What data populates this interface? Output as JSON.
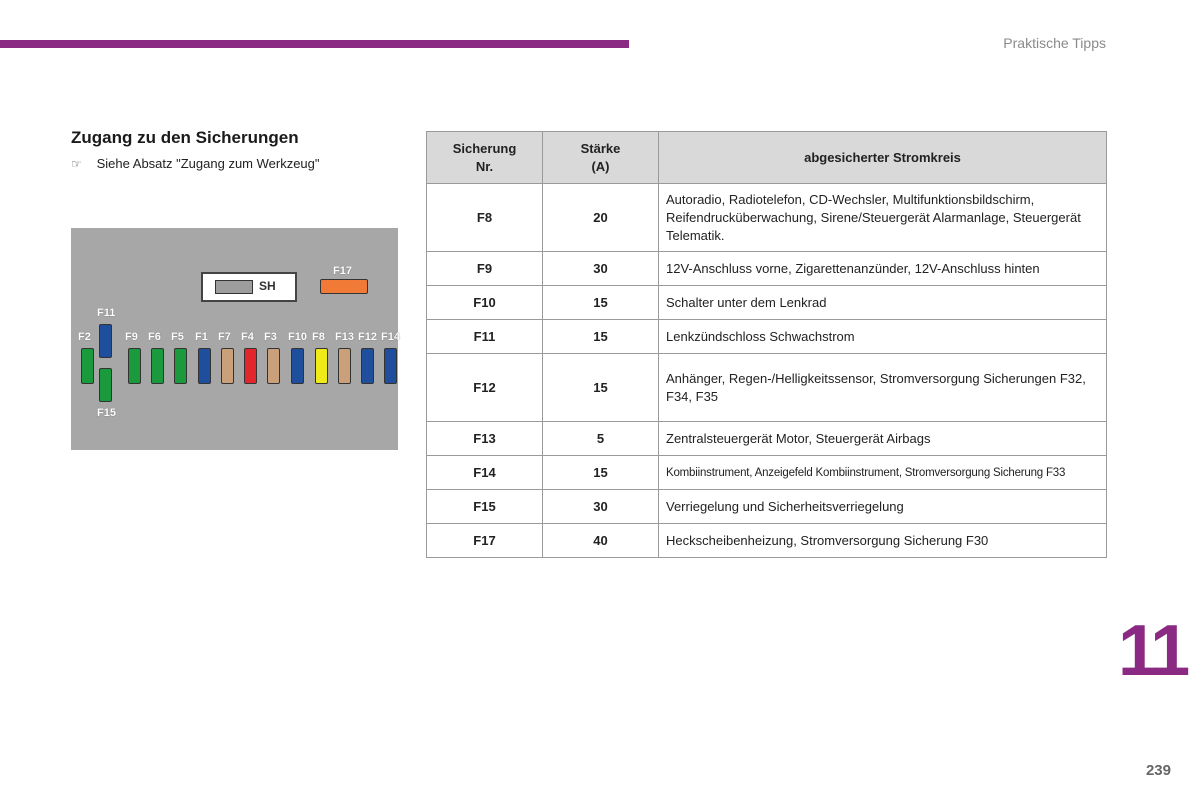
{
  "header": {
    "section": "Praktische Tipps"
  },
  "access": {
    "title": "Zugang zu den Sicherungen",
    "note_icon": "pointing-hand-icon",
    "note": "Siehe Absatz \"Zugang zum Werkzeug\""
  },
  "diagram": {
    "sh_label": "SH",
    "labels": {
      "F17": "F17",
      "F11": "F11",
      "F15": "F15",
      "row": [
        "F2",
        "F9",
        "F6",
        "F5",
        "F1",
        "F7",
        "F4",
        "F3",
        "F10",
        "F8",
        "F13",
        "F12",
        "F14"
      ]
    },
    "fuse_colors": {
      "F2": "#1a9a3c",
      "F11": "#1f4e9c",
      "F15": "#1a9a3c",
      "F9": "#1a9a3c",
      "F6": "#1a9a3c",
      "F5": "#1a9a3c",
      "F1": "#1f4e9c",
      "F7": "#c9a079",
      "F4": "#e3262b",
      "F3": "#c9a079",
      "F10": "#1f4e9c",
      "F8": "#f0ea18",
      "F13": "#c9a079",
      "F12": "#1f4e9c",
      "F14": "#1f4e9c",
      "F17": "#f07a36"
    }
  },
  "table": {
    "headers": {
      "fuse_line1": "Sicherung",
      "fuse_line2": "Nr.",
      "amp_line1": "Stärke",
      "amp_line2": "(A)",
      "circuit": "abgesicherter Stromkreis"
    },
    "rows": [
      {
        "fuse": "F8",
        "amp": "20",
        "desc": "Autoradio, Radiotelefon, CD-Wechsler, Multifunktionsbildschirm, Reifendrucküberwachung, Sirene/Steuergerät Alarmanlage, Steuergerät Telematik."
      },
      {
        "fuse": "F9",
        "amp": "30",
        "desc": "12V-Anschluss vorne, Zigarettenanzünder, 12V-Anschluss hinten"
      },
      {
        "fuse": "F10",
        "amp": "15",
        "desc": "Schalter unter dem Lenkrad"
      },
      {
        "fuse": "F11",
        "amp": "15",
        "desc": "Lenkzündschloss Schwachstrom"
      },
      {
        "fuse": "F12",
        "amp": "15",
        "desc": "Anhänger, Regen-/Helligkeitssensor, Stromversorgung Sicherungen F32, F34, F35"
      },
      {
        "fuse": "F13",
        "amp": "5",
        "desc": "Zentralsteuergerät Motor, Steuergerät Airbags"
      },
      {
        "fuse": "F14",
        "amp": "15",
        "desc": "Kombiinstrument, Anzeigefeld Kombiinstrument, Stromversorgung Sicherung F33"
      },
      {
        "fuse": "F15",
        "amp": "30",
        "desc": "Verriegelung und Sicherheitsverriegelung"
      },
      {
        "fuse": "F17",
        "amp": "40",
        "desc": "Heckscheibenheizung, Stromversorgung Sicherung F30"
      }
    ]
  },
  "chapter": "11",
  "page": "239"
}
